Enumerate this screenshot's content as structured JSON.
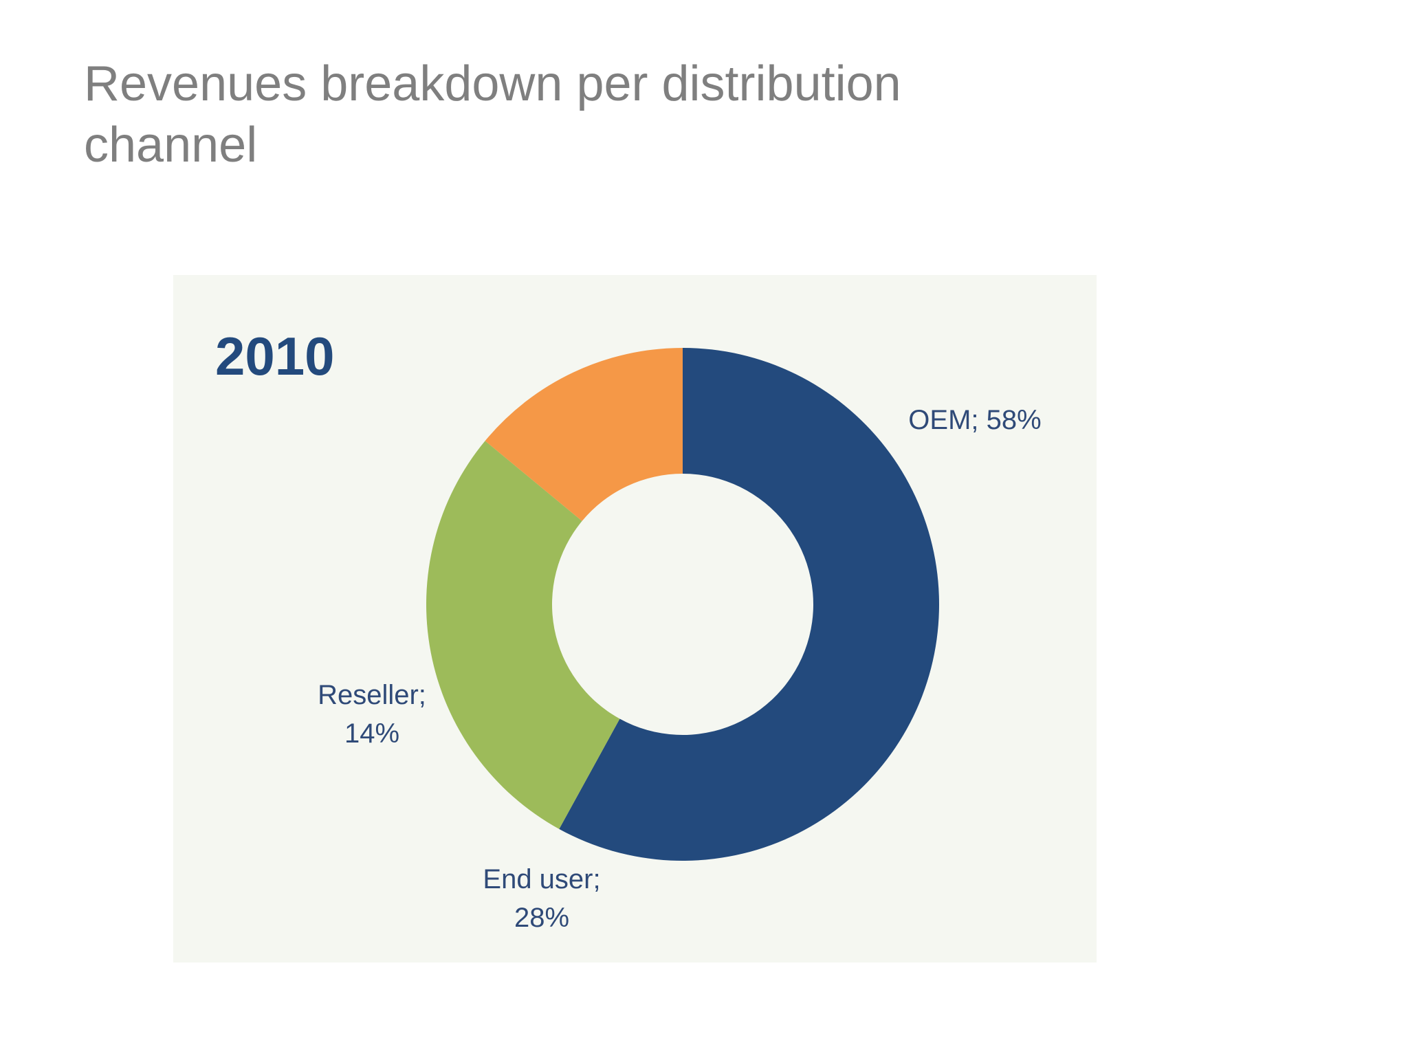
{
  "title": "Revenues breakdown per distribution channel",
  "chart_data": {
    "type": "pie",
    "variant": "donut",
    "title": "2010",
    "categories": [
      "OEM",
      "End user",
      "Reseller"
    ],
    "values": [
      58,
      28,
      14
    ],
    "unit": "%",
    "colors": [
      "#234a7d",
      "#9dbb5a",
      "#f59847"
    ],
    "labels": [
      {
        "lines": [
          "OEM; 58%"
        ]
      },
      {
        "lines": [
          "End user;",
          "28%"
        ]
      },
      {
        "lines": [
          "Reseller;",
          "14%"
        ]
      }
    ],
    "start_angle_deg": 0,
    "direction": "clockwise",
    "legend": "none",
    "panel_background": "#f5f7f1"
  }
}
